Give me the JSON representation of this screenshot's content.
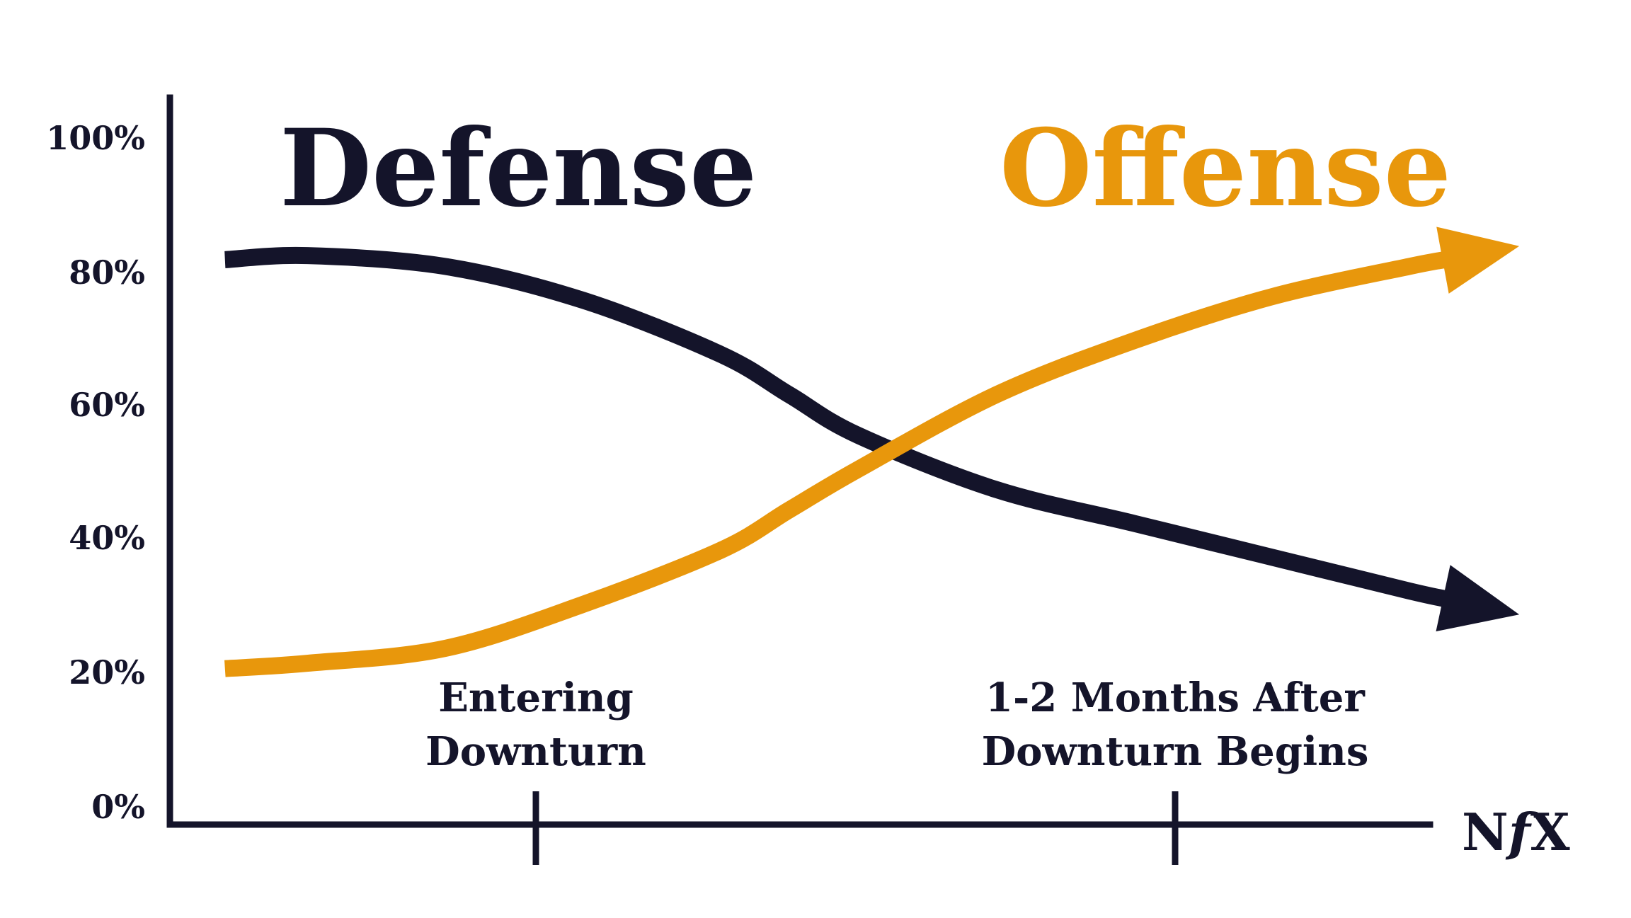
{
  "chart_data": {
    "type": "line",
    "title": "",
    "xlabel": "",
    "ylabel": "",
    "ylim": [
      0,
      100
    ],
    "xlim": [
      0,
      100
    ],
    "y_ticks": [
      "0%",
      "20%",
      "40%",
      "60%",
      "80%",
      "100%"
    ],
    "y_tick_values": [
      0,
      20,
      40,
      60,
      80,
      100
    ],
    "x_categories": [
      {
        "label_lines": [
          "Entering",
          "Downturn"
        ],
        "x": 28
      },
      {
        "label_lines": [
          "1-2 Months After",
          "Downturn Begins"
        ],
        "x": 78
      }
    ],
    "grid": false,
    "legend": "none",
    "brand": {
      "left": "N",
      "mid": "f",
      "right": "X"
    },
    "series": [
      {
        "name": "Defense",
        "color": "#14142a",
        "arrow": true,
        "x": [
          4,
          10,
          20,
          30,
          40,
          45,
          50,
          60,
          70,
          80,
          90,
          98
        ],
        "y": [
          82,
          82.6,
          81,
          76,
          68,
          62,
          56,
          48,
          43,
          38,
          33,
          29.5
        ]
      },
      {
        "name": "Offense",
        "color": "#e8970c",
        "arrow": true,
        "x": [
          4,
          10,
          20,
          30,
          40,
          45,
          50,
          60,
          70,
          80,
          90,
          98
        ],
        "y": [
          21.5,
          22.3,
          24.5,
          31,
          39,
          45,
          51,
          62,
          70,
          76.5,
          81,
          84
        ]
      }
    ]
  }
}
